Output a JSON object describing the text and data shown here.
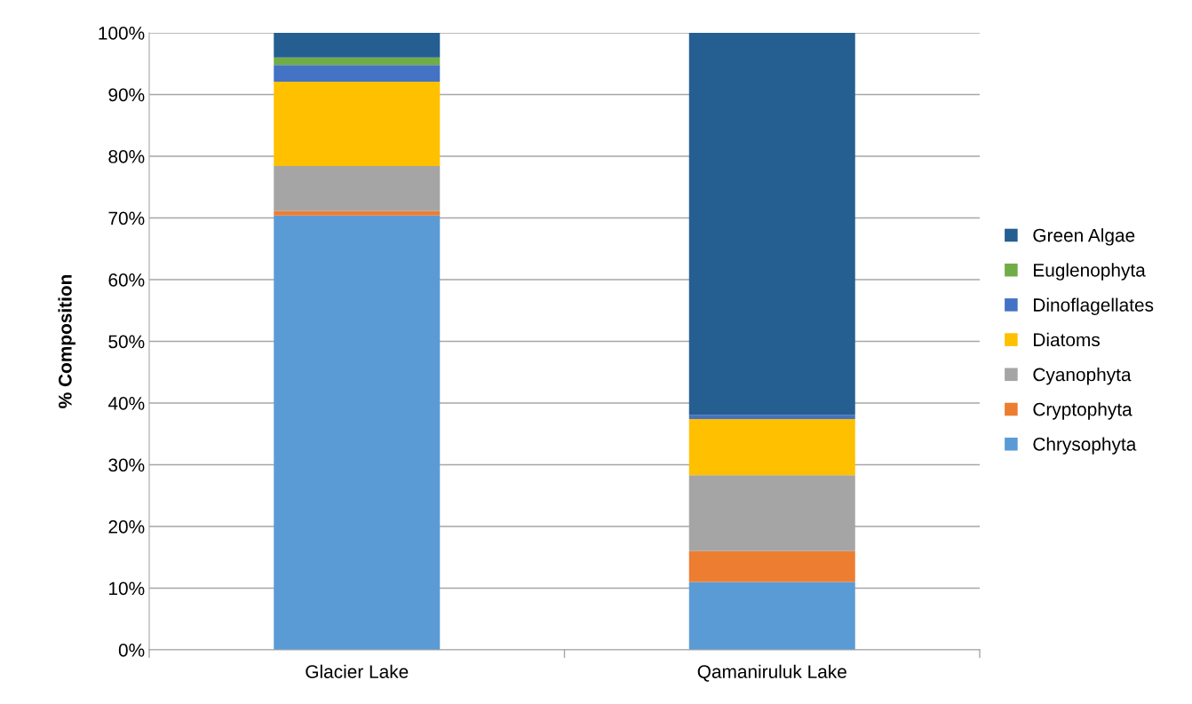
{
  "chart_data": {
    "type": "bar",
    "stacked": true,
    "ylabel": "% Composition",
    "categories": [
      "Glacier Lake",
      "Qamaniruluk Lake"
    ],
    "series": [
      {
        "name": "Chrysophyta",
        "color": "#5b9bd5",
        "values": [
          70.4,
          11.0
        ]
      },
      {
        "name": "Cryptophyta",
        "color": "#ed7d31",
        "values": [
          0.7,
          5.0
        ]
      },
      {
        "name": "Cyanophyta",
        "color": "#a5a5a5",
        "values": [
          7.3,
          12.3
        ]
      },
      {
        "name": "Diatoms",
        "color": "#ffc000",
        "values": [
          13.7,
          9.1
        ]
      },
      {
        "name": "Dinoflagellates",
        "color": "#4472c4",
        "values": [
          2.7,
          0.7
        ]
      },
      {
        "name": "Euglenophyta",
        "color": "#70ad47",
        "values": [
          1.2,
          0
        ]
      },
      {
        "name": "Green Algae",
        "color": "#255e91",
        "values": [
          4.0,
          61.9
        ]
      }
    ],
    "ylim": [
      0,
      100
    ],
    "yticks": [
      {
        "value": 0,
        "label": "0%"
      },
      {
        "value": 10,
        "label": "10%"
      },
      {
        "value": 20,
        "label": "20%"
      },
      {
        "value": 30,
        "label": "30%"
      },
      {
        "value": 40,
        "label": "40%"
      },
      {
        "value": 50,
        "label": "50%"
      },
      {
        "value": 60,
        "label": "60%"
      },
      {
        "value": 70,
        "label": "70%"
      },
      {
        "value": 80,
        "label": "80%"
      },
      {
        "value": 90,
        "label": "90%"
      },
      {
        "value": 100,
        "label": "100%"
      }
    ],
    "grid": "y",
    "legend": "right"
  }
}
